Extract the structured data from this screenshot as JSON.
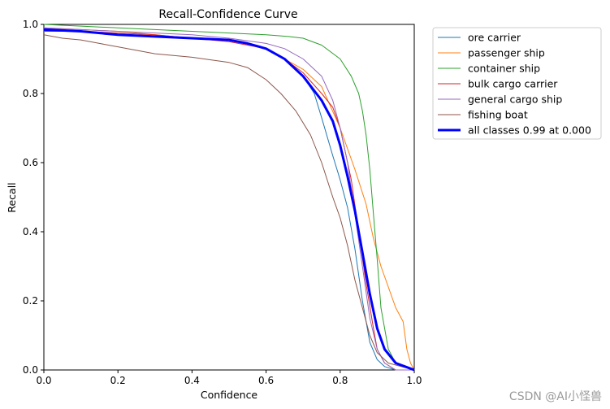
{
  "chart_data": {
    "type": "line",
    "title": "Recall-Confidence Curve",
    "xlabel": "Confidence",
    "ylabel": "Recall",
    "xlim": [
      0.0,
      1.0
    ],
    "ylim": [
      0.0,
      1.0
    ],
    "xticks": [
      "0.0",
      "0.2",
      "0.4",
      "0.6",
      "0.8",
      "1.0"
    ],
    "yticks": [
      "0.0",
      "0.2",
      "0.4",
      "0.6",
      "0.8",
      "1.0"
    ],
    "grid": false,
    "legend_position": "outside-right",
    "series": [
      {
        "name": "ore carrier",
        "color": "#1f77b4",
        "x": [
          0.0,
          0.1,
          0.2,
          0.3,
          0.4,
          0.5,
          0.55,
          0.6,
          0.65,
          0.7,
          0.73,
          0.75,
          0.78,
          0.8,
          0.82,
          0.84,
          0.86,
          0.88,
          0.9,
          0.92,
          0.95,
          1.0
        ],
        "y": [
          0.99,
          0.98,
          0.97,
          0.965,
          0.96,
          0.955,
          0.945,
          0.93,
          0.9,
          0.85,
          0.8,
          0.73,
          0.62,
          0.55,
          0.47,
          0.35,
          0.2,
          0.08,
          0.03,
          0.01,
          0.0,
          0.0
        ]
      },
      {
        "name": "passenger ship",
        "color": "#ff7f0e",
        "x": [
          0.0,
          0.1,
          0.2,
          0.3,
          0.4,
          0.5,
          0.6,
          0.65,
          0.7,
          0.75,
          0.8,
          0.84,
          0.87,
          0.89,
          0.91,
          0.93,
          0.95,
          0.97,
          0.98,
          0.99,
          1.0
        ],
        "y": [
          0.99,
          0.985,
          0.98,
          0.97,
          0.96,
          0.955,
          0.93,
          0.9,
          0.87,
          0.82,
          0.7,
          0.58,
          0.48,
          0.38,
          0.3,
          0.24,
          0.18,
          0.14,
          0.06,
          0.02,
          0.0
        ]
      },
      {
        "name": "container ship",
        "color": "#2ca02c",
        "x": [
          0.0,
          0.1,
          0.2,
          0.3,
          0.4,
          0.5,
          0.6,
          0.66,
          0.7,
          0.75,
          0.8,
          0.83,
          0.85,
          0.86,
          0.87,
          0.88,
          0.89,
          0.9,
          0.91,
          0.93,
          0.95,
          1.0
        ],
        "y": [
          1.0,
          0.995,
          0.99,
          0.985,
          0.98,
          0.975,
          0.97,
          0.965,
          0.96,
          0.94,
          0.9,
          0.85,
          0.8,
          0.75,
          0.68,
          0.58,
          0.45,
          0.32,
          0.18,
          0.06,
          0.02,
          0.0
        ]
      },
      {
        "name": "bulk cargo carrier",
        "color": "#d62728",
        "x": [
          0.0,
          0.1,
          0.2,
          0.3,
          0.4,
          0.5,
          0.6,
          0.65,
          0.7,
          0.75,
          0.78,
          0.8,
          0.83,
          0.85,
          0.87,
          0.89,
          0.9,
          0.92,
          0.95,
          1.0
        ],
        "y": [
          0.98,
          0.98,
          0.975,
          0.97,
          0.96,
          0.95,
          0.93,
          0.9,
          0.86,
          0.8,
          0.76,
          0.7,
          0.55,
          0.4,
          0.25,
          0.12,
          0.06,
          0.02,
          0.0,
          0.0
        ]
      },
      {
        "name": "general cargo ship",
        "color": "#9467bd",
        "x": [
          0.0,
          0.1,
          0.2,
          0.3,
          0.4,
          0.5,
          0.6,
          0.65,
          0.7,
          0.75,
          0.78,
          0.8,
          0.82,
          0.84,
          0.86,
          0.88,
          0.9,
          0.92,
          0.95,
          1.0
        ],
        "y": [
          0.99,
          0.985,
          0.98,
          0.975,
          0.97,
          0.96,
          0.945,
          0.93,
          0.9,
          0.85,
          0.78,
          0.7,
          0.6,
          0.45,
          0.3,
          0.15,
          0.06,
          0.02,
          0.0,
          0.0
        ]
      },
      {
        "name": "fishing boat",
        "color": "#8c564b",
        "x": [
          0.0,
          0.05,
          0.1,
          0.15,
          0.2,
          0.25,
          0.3,
          0.4,
          0.5,
          0.55,
          0.6,
          0.64,
          0.68,
          0.72,
          0.75,
          0.78,
          0.8,
          0.82,
          0.84,
          0.86,
          0.88,
          0.9,
          0.93,
          1.0
        ],
        "y": [
          0.97,
          0.96,
          0.955,
          0.945,
          0.935,
          0.925,
          0.915,
          0.905,
          0.89,
          0.875,
          0.84,
          0.8,
          0.75,
          0.68,
          0.6,
          0.5,
          0.44,
          0.36,
          0.26,
          0.18,
          0.1,
          0.05,
          0.02,
          0.0
        ]
      },
      {
        "name": "all classes 0.99 at 0.000",
        "color": "#0000ff",
        "bold": true,
        "x": [
          0.0,
          0.1,
          0.2,
          0.3,
          0.4,
          0.5,
          0.55,
          0.6,
          0.65,
          0.7,
          0.75,
          0.78,
          0.8,
          0.82,
          0.84,
          0.86,
          0.88,
          0.9,
          0.92,
          0.95,
          1.0
        ],
        "y": [
          0.985,
          0.98,
          0.97,
          0.965,
          0.96,
          0.955,
          0.945,
          0.93,
          0.9,
          0.85,
          0.78,
          0.72,
          0.65,
          0.56,
          0.46,
          0.34,
          0.22,
          0.12,
          0.06,
          0.02,
          0.0
        ]
      }
    ]
  },
  "watermark": "CSDN @AI小怪兽"
}
